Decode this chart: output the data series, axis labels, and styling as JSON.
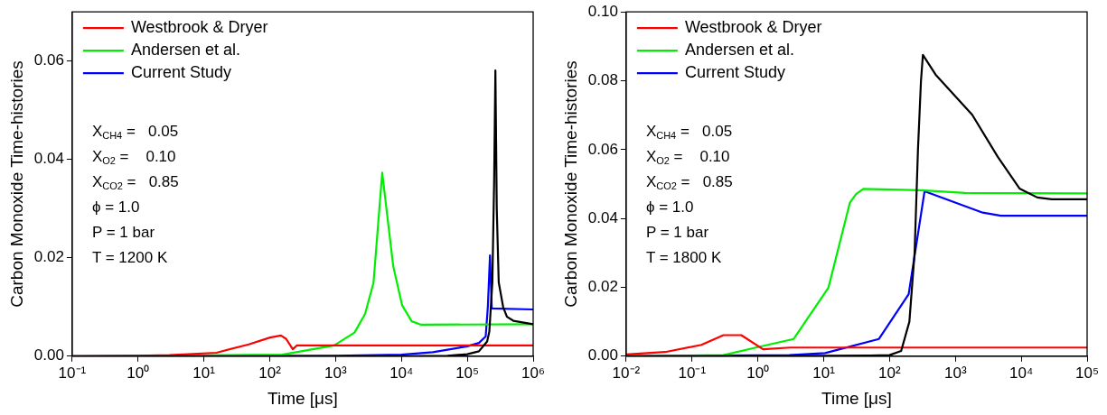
{
  "chart_data": [
    {
      "type": "line",
      "xlabel": "Time [μs]",
      "ylabel": "Carbon Monoxide Time-histories",
      "log": "x",
      "legend": "top left",
      "grid": false,
      "marker": "none",
      "line_style": "solid",
      "xlim": [
        0.1,
        1000000
      ],
      "xticks": [
        {
          "value": 0.1,
          "label": "10⁻¹"
        },
        {
          "value": 1,
          "label": "10⁰"
        },
        {
          "value": 10,
          "label": "10¹"
        },
        {
          "value": 100,
          "label": "10²"
        },
        {
          "value": 1000,
          "label": "10³"
        },
        {
          "value": 10000,
          "label": "10⁴"
        },
        {
          "value": 100000,
          "label": "10⁵"
        },
        {
          "value": 1000000,
          "label": "10⁶"
        }
      ],
      "ylim": [
        0,
        0.07
      ],
      "yticks": [
        {
          "value": 0,
          "label": "0.00"
        },
        {
          "value": 0.02,
          "label": "0.02"
        },
        {
          "value": 0.04,
          "label": "0.04"
        },
        {
          "value": 0.06,
          "label": "0.06"
        }
      ],
      "annotations": [
        "X$_{CH4}$ =   0.05",
        "X$_{O2}$ =    0.10",
        "X$_{CO2}$ =   0.85",
        "ϕ = 1.0",
        "P = 1 bar",
        "T = 1200 K"
      ],
      "series": [
        {
          "color": "#000000",
          "x": [
            0.1,
            1000,
            10000,
            50000,
            100000,
            150000,
            200000,
            216000,
            240000,
            255000,
            267000,
            280000,
            300000,
            350000,
            400000,
            500000,
            1000000
          ],
          "values": [
            0,
            0,
            0,
            0.0001,
            0.0004,
            0.001,
            0.003,
            0.005,
            0.015,
            0.035,
            0.0581,
            0.03,
            0.015,
            0.01,
            0.008,
            0.0072,
            0.0065
          ]
        },
        {
          "name": "Westbrook & Dryer",
          "color": "#ff0000",
          "x": [
            0.1,
            1,
            3,
            15.5,
            48,
            101,
            148,
            178,
            224,
            259,
            1000000
          ],
          "values": [
            0,
            0.0001,
            0.0002,
            0.0007,
            0.0024,
            0.0038,
            0.0042,
            0.0035,
            0.0014,
            0.0022,
            0.0022
          ]
        },
        {
          "name": "Andersen et al.",
          "color": "#00ee00",
          "x": [
            0.1,
            155,
            950,
            1940,
            2800,
            3760,
            5100,
            7500,
            10200,
            14300,
            20000,
            1000000
          ],
          "values": [
            0,
            0.0003,
            0.0022,
            0.0048,
            0.0086,
            0.0149,
            0.0373,
            0.0183,
            0.0104,
            0.0071,
            0.0064,
            0.0065
          ]
        },
        {
          "name": "Current Study",
          "color": "#0000ff",
          "x": [
            3,
            1000,
            10000,
            30000,
            100000,
            150000,
            190000,
            205000,
            221000,
            235000,
            1000000
          ],
          "values": [
            0,
            0.0001,
            0.0003,
            0.0008,
            0.002,
            0.0027,
            0.004,
            0.01,
            0.0205,
            0.0097,
            0.0095
          ]
        }
      ]
    },
    {
      "type": "line",
      "xlabel": "Time [μs]",
      "ylabel": "Carbon Monoxide Time-histories",
      "log": "x",
      "legend": "top left",
      "grid": false,
      "marker": "none",
      "line_style": "solid",
      "xlim": [
        0.01,
        100000
      ],
      "xticks": [
        {
          "value": 0.01,
          "label": "10⁻²"
        },
        {
          "value": 0.1,
          "label": "10⁻¹"
        },
        {
          "value": 1,
          "label": "10⁰"
        },
        {
          "value": 10,
          "label": "10¹"
        },
        {
          "value": 100,
          "label": "10²"
        },
        {
          "value": 1000,
          "label": "10³"
        },
        {
          "value": 10000,
          "label": "10⁴"
        },
        {
          "value": 100000,
          "label": "10⁵"
        }
      ],
      "ylim": [
        0,
        0.1
      ],
      "yticks": [
        {
          "value": 0,
          "label": "0.00"
        },
        {
          "value": 0.02,
          "label": "0.02"
        },
        {
          "value": 0.04,
          "label": "0.04"
        },
        {
          "value": 0.06,
          "label": "0.06"
        },
        {
          "value": 0.08,
          "label": "0.08"
        },
        {
          "value": 0.1,
          "label": "0.10"
        }
      ],
      "annotations": [
        "X$_{CH4}$ =   0.05",
        "X$_{O2}$ =    0.10",
        "X$_{CO2}$ =   0.85",
        "ϕ = 1.0",
        "P = 1 bar",
        "T = 1800 K"
      ],
      "series": [
        {
          "color": "#000000",
          "x": [
            0.01,
            10,
            50,
            100,
            150,
            200,
            240,
            270,
            300,
            321,
            500,
            1800,
            4400,
            9400,
            17500,
            29000,
            100000
          ],
          "values": [
            0,
            0.0001,
            0.0002,
            0.0003,
            0.0015,
            0.01,
            0.03,
            0.06,
            0.08,
            0.0875,
            0.0818,
            0.0701,
            0.0579,
            0.0487,
            0.0461,
            0.0456,
            0.0456
          ]
        },
        {
          "name": "Westbrook & Dryer",
          "color": "#ff0000",
          "x": [
            0.01,
            0.039,
            0.139,
            0.3,
            0.56,
            1.2,
            3.1,
            100000
          ],
          "values": [
            0.0005,
            0.0012,
            0.0033,
            0.0061,
            0.0061,
            0.002,
            0.0025,
            0.0025
          ]
        },
        {
          "name": "Andersen et al.",
          "color": "#00ee00",
          "x": [
            0.01,
            0.3,
            0.93,
            3.5,
            11.8,
            25,
            31,
            40,
            300,
            1400,
            100000
          ],
          "values": [
            0,
            0.0003,
            0.0025,
            0.005,
            0.0199,
            0.0446,
            0.0471,
            0.0486,
            0.0482,
            0.0474,
            0.0473
          ]
        },
        {
          "name": "Current Study",
          "color": "#0000ff",
          "x": [
            0.01,
            3,
            10.5,
            69,
            195,
            340,
            2600,
            4900,
            100000
          ],
          "values": [
            0,
            0.0003,
            0.0009,
            0.005,
            0.018,
            0.0479,
            0.0417,
            0.0408,
            0.0408
          ]
        }
      ]
    }
  ]
}
